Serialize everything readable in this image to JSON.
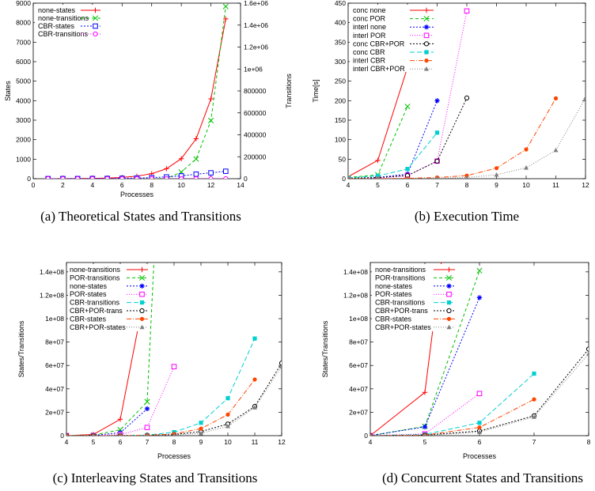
{
  "chart_data": [
    {
      "type": "line",
      "caption": "(a) Theoretical States and Transitions",
      "xlabel": "Processes",
      "ylabel": "States",
      "y2label": "Transitions",
      "xlim": [
        0,
        14
      ],
      "ylim": [
        0,
        9000
      ],
      "y2lim": [
        0,
        1600000
      ],
      "xticks": [
        0,
        2,
        4,
        6,
        8,
        10,
        12,
        14
      ],
      "yticks": [
        0,
        1000,
        2000,
        3000,
        4000,
        5000,
        6000,
        7000,
        8000,
        9000
      ],
      "y2ticks": [
        0,
        200000,
        400000,
        600000,
        800000,
        1000000,
        1200000,
        1400000,
        1600000
      ],
      "y2ticklabels": [
        "0",
        "200000",
        "400000",
        "600000",
        "800000",
        "1e+06",
        "1.2e+06",
        "1.4e+06",
        "1.6e+06"
      ],
      "legend_position": "top-left",
      "series": [
        {
          "name": "none-states",
          "color": "#ff0000",
          "dash": "",
          "marker": "plus",
          "axis": "y",
          "x": [
            1,
            2,
            3,
            4,
            5,
            6,
            7,
            8,
            9,
            10,
            11,
            12,
            13
          ],
          "y": [
            2,
            4,
            8,
            16,
            32,
            64,
            128,
            256,
            512,
            1024,
            2048,
            4096,
            8192
          ]
        },
        {
          "name": "none-transitions",
          "color": "#00c000",
          "dash": "4,3",
          "marker": "cross",
          "axis": "y2",
          "x": [
            1,
            2,
            3,
            4,
            5,
            6,
            7,
            8,
            9,
            10,
            11,
            12,
            13
          ],
          "y": [
            1,
            4,
            12,
            32,
            80,
            192,
            448,
            1024,
            2304,
            60000,
            180000,
            530000,
            1570000
          ]
        },
        {
          "name": "CBR-states",
          "color": "#0000ff",
          "dash": "2,2",
          "marker": "square",
          "axis": "y",
          "x": [
            1,
            2,
            3,
            4,
            5,
            6,
            7,
            8,
            9,
            10,
            11,
            12,
            13
          ],
          "y": [
            2,
            3,
            5,
            8,
            13,
            21,
            34,
            55,
            89,
            144,
            233,
            300,
            380
          ]
        },
        {
          "name": "CBR-transitions",
          "color": "#ff00ff",
          "dash": "1,2",
          "marker": "circle",
          "axis": "y2",
          "x": [
            1,
            2,
            3,
            4,
            5,
            6,
            7,
            8,
            9,
            10,
            11,
            12,
            13
          ],
          "y": [
            1,
            2,
            4,
            7,
            11,
            16,
            22,
            29,
            37,
            46,
            56,
            67,
            79
          ]
        }
      ]
    },
    {
      "type": "line",
      "caption": "(b) Execution Time",
      "xlabel": "",
      "ylabel": "Time[s]",
      "xlim": [
        4,
        12
      ],
      "ylim": [
        0,
        450
      ],
      "xticks": [
        4,
        5,
        6,
        7,
        8,
        9,
        10,
        11,
        12
      ],
      "yticks": [
        0,
        50,
        100,
        150,
        200,
        250,
        300,
        350,
        400,
        450
      ],
      "legend_position": "top-left",
      "series": [
        {
          "name": "conc none",
          "color": "#ff0000",
          "dash": "",
          "marker": "plus",
          "x": [
            4,
            5,
            6
          ],
          "y": [
            5,
            47,
            285
          ]
        },
        {
          "name": "conc POR",
          "color": "#00c000",
          "dash": "4,3",
          "marker": "cross",
          "x": [
            4,
            5,
            6
          ],
          "y": [
            3,
            10,
            185
          ]
        },
        {
          "name": "interl none",
          "color": "#0000ff",
          "dash": "2,2",
          "marker": "star",
          "x": [
            4,
            5,
            6,
            7
          ],
          "y": [
            1,
            3,
            12,
            200
          ]
        },
        {
          "name": "interl POR",
          "color": "#ff00ff",
          "dash": "1,2",
          "marker": "square",
          "x": [
            4,
            5,
            6,
            7,
            8
          ],
          "y": [
            0,
            1,
            8,
            45,
            430
          ]
        },
        {
          "name": "conc CBR+POR",
          "color": "#000000",
          "dash": "2,2",
          "marker": "circle",
          "x": [
            4,
            5,
            6,
            7,
            8
          ],
          "y": [
            1,
            3,
            8,
            45,
            207
          ]
        },
        {
          "name": "conc CBR",
          "color": "#00d0d0",
          "dash": "6,3",
          "marker": "fsquare",
          "x": [
            4,
            5,
            6,
            7
          ],
          "y": [
            2,
            7,
            25,
            118
          ]
        },
        {
          "name": "interl CBR",
          "color": "#ff4500",
          "dash": "6,2,1,2",
          "marker": "fcircle",
          "x": [
            4,
            5,
            6,
            7,
            8,
            9,
            10,
            11
          ],
          "y": [
            0,
            0,
            1,
            3,
            8,
            27,
            75,
            206
          ]
        },
        {
          "name": "interl CBR+POR",
          "color": "#808080",
          "dash": "1,2",
          "marker": "triangle",
          "x": [
            4,
            5,
            6,
            7,
            8,
            9,
            10,
            11,
            12
          ],
          "y": [
            0,
            0,
            0,
            1,
            3,
            10,
            28,
            73,
            207
          ]
        }
      ]
    },
    {
      "type": "line",
      "caption": "(c) Interleaving States and Transitions",
      "xlabel": "Processes",
      "ylabel": "States/Transitions",
      "xlim": [
        4,
        12
      ],
      "ylim": [
        0,
        148000000
      ],
      "xticks": [
        4,
        5,
        6,
        7,
        8,
        9,
        10,
        11,
        12
      ],
      "yticks": [
        0,
        20000000,
        40000000,
        60000000,
        80000000,
        100000000,
        120000000,
        140000000
      ],
      "yticklabels": [
        "0",
        "2e+07",
        "4e+07",
        "6e+07",
        "8e+07",
        "1e+08",
        "1.2e+08",
        "1.4e+08"
      ],
      "legend_position": "top-left",
      "series": [
        {
          "name": "none-transitions",
          "color": "#ff0000",
          "dash": "",
          "marker": "plus",
          "x": [
            4,
            5,
            6,
            7
          ],
          "y": [
            0,
            1000000,
            14000000,
            132000000
          ]
        },
        {
          "name": "POR-transitions",
          "color": "#00c000",
          "dash": "4,3",
          "marker": "cross",
          "x": [
            4,
            5,
            6,
            7,
            7.25
          ],
          "y": [
            0,
            500000,
            5000000,
            29000000,
            148000000
          ]
        },
        {
          "name": "none-states",
          "color": "#0000ff",
          "dash": "2,2",
          "marker": "star",
          "x": [
            4,
            5,
            6,
            7
          ],
          "y": [
            0,
            200000,
            2500000,
            23000000
          ]
        },
        {
          "name": "POR-states",
          "color": "#ff00ff",
          "dash": "1,2",
          "marker": "square",
          "x": [
            4,
            5,
            6,
            7,
            8
          ],
          "y": [
            0,
            100000,
            900000,
            7000000,
            59000000
          ]
        },
        {
          "name": "CBR-transitions",
          "color": "#00d0d0",
          "dash": "6,3",
          "marker": "fsquare",
          "x": [
            4,
            5,
            6,
            7,
            8,
            9,
            10,
            11
          ],
          "y": [
            0,
            0,
            100000,
            500000,
            3000000,
            11000000,
            32000000,
            83000000
          ]
        },
        {
          "name": "CBR+POR-trans",
          "color": "#000000",
          "dash": "2,2",
          "marker": "circle",
          "x": [
            4,
            5,
            6,
            7,
            8,
            9,
            10,
            11,
            12
          ],
          "y": [
            0,
            0,
            50000,
            200000,
            1000000,
            3500000,
            10000000,
            25000000,
            62000000
          ]
        },
        {
          "name": "CBR-states",
          "color": "#ff4500",
          "dash": "6,2,1,2",
          "marker": "fcircle",
          "x": [
            4,
            5,
            6,
            7,
            8,
            9,
            10,
            11
          ],
          "y": [
            0,
            0,
            50000,
            300000,
            1500000,
            6000000,
            18000000,
            48000000
          ]
        },
        {
          "name": "CBR+POR-states",
          "color": "#808080",
          "dash": "1,2",
          "marker": "triangle",
          "x": [
            4,
            5,
            6,
            7,
            8,
            9,
            10,
            11,
            12
          ],
          "y": [
            0,
            0,
            20000,
            100000,
            500000,
            2000000,
            8000000,
            24000000,
            59000000
          ]
        }
      ]
    },
    {
      "type": "line",
      "caption": "(d) Concurrent States and Transitions",
      "xlabel": "Processes",
      "ylabel": "States/Transitions",
      "xlim": [
        4,
        8
      ],
      "ylim": [
        0,
        148000000
      ],
      "xticks": [
        4,
        5,
        6,
        7,
        8
      ],
      "yticks": [
        0,
        20000000,
        40000000,
        60000000,
        80000000,
        100000000,
        120000000,
        140000000
      ],
      "yticklabels": [
        "0",
        "2e+07",
        "4e+07",
        "6e+07",
        "8e+07",
        "1e+08",
        "1.2e+08",
        "1.4e+08"
      ],
      "legend_position": "top-left",
      "series": [
        {
          "name": "none-transitions",
          "color": "#ff0000",
          "dash": "",
          "marker": "plus",
          "x": [
            4,
            5,
            5.3
          ],
          "y": [
            0,
            37000000,
            148000000
          ]
        },
        {
          "name": "POR-transitions",
          "color": "#00c000",
          "dash": "4,3",
          "marker": "cross",
          "x": [
            4,
            5,
            6
          ],
          "y": [
            0,
            8000000,
            141000000
          ]
        },
        {
          "name": "none-states",
          "color": "#0000ff",
          "dash": "2,2",
          "marker": "star",
          "x": [
            4,
            5,
            6
          ],
          "y": [
            0,
            7500000,
            118000000
          ]
        },
        {
          "name": "POR-states",
          "color": "#ff00ff",
          "dash": "1,2",
          "marker": "square",
          "x": [
            4,
            5,
            6
          ],
          "y": [
            0,
            1500000,
            36000000
          ]
        },
        {
          "name": "CBR-transitions",
          "color": "#00d0d0",
          "dash": "6,3",
          "marker": "fsquare",
          "x": [
            4,
            5,
            6,
            7
          ],
          "y": [
            0,
            1000000,
            11000000,
            53000000
          ]
        },
        {
          "name": "CBR+POR-trans",
          "color": "#000000",
          "dash": "2,2",
          "marker": "circle",
          "x": [
            4,
            5,
            6,
            7,
            8
          ],
          "y": [
            0,
            500000,
            4000000,
            17000000,
            74000000
          ]
        },
        {
          "name": "CBR-states",
          "color": "#ff4500",
          "dash": "6,2,1,2",
          "marker": "fcircle",
          "x": [
            4,
            5,
            6,
            7
          ],
          "y": [
            0,
            500000,
            7000000,
            31000000
          ]
        },
        {
          "name": "CBR+POR-states",
          "color": "#808080",
          "dash": "1,2",
          "marker": "triangle",
          "x": [
            4,
            5,
            6,
            7,
            8
          ],
          "y": [
            0,
            200000,
            3000000,
            16000000,
            70000000
          ]
        }
      ]
    }
  ]
}
